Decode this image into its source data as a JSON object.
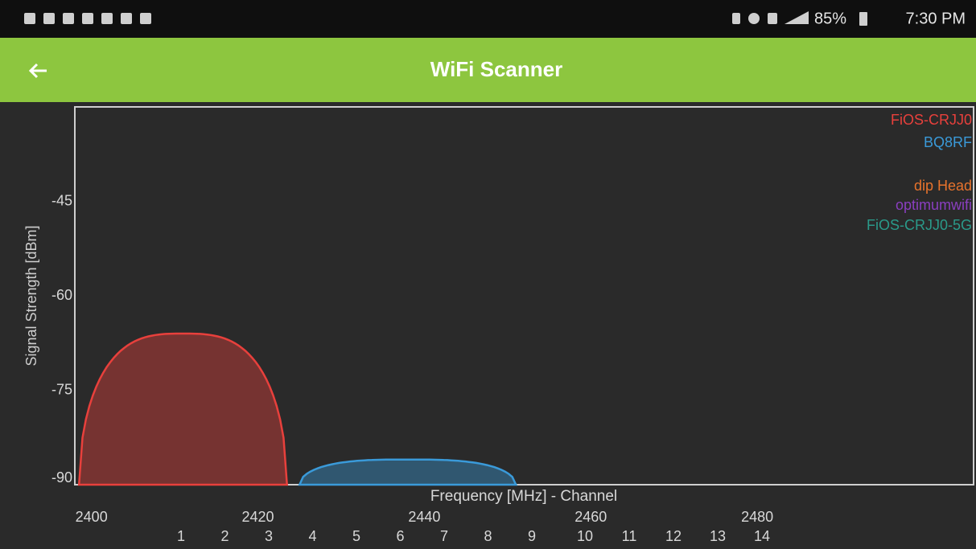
{
  "status_bar": {
    "battery": "85%",
    "time": "7:30 PM"
  },
  "app_bar": {
    "title": "WiFi Scanner"
  },
  "chart_data": {
    "type": "area",
    "y_label": "Signal Strength [dBm]",
    "x_label": "Frequency [MHz] - Channel",
    "ylim": [
      -90,
      -30
    ],
    "yticks": [
      -45,
      -60,
      -75,
      -90
    ],
    "xlim": [
      2398,
      2506
    ],
    "xticks": [
      2400,
      2420,
      2440,
      2460,
      2480
    ],
    "channels": [
      "1",
      "2",
      "3",
      "4",
      "5",
      "6",
      "7",
      "8",
      "9",
      "10",
      "11",
      "12",
      "13",
      "14"
    ],
    "series": [
      {
        "name": "FiOS-CRJJ0",
        "color": "#e8403c",
        "frequency": 2411,
        "width": 25,
        "signal": -66
      },
      {
        "name": "BQ8RF",
        "color": "#3a9ad9",
        "frequency": 2438,
        "width": 26,
        "signal": -86
      },
      {
        "name": "dip Head",
        "color": "#e8732c"
      },
      {
        "name": "optimumwifi",
        "color": "#8a3fc0"
      },
      {
        "name": "FiOS-CRJJ0-5G",
        "color": "#2a9a8a"
      }
    ]
  }
}
